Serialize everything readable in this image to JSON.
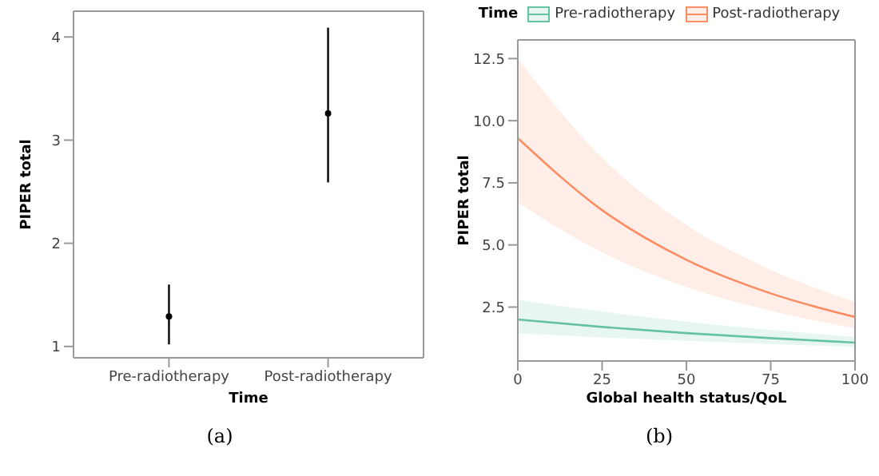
{
  "chart_data": [
    {
      "type": "scatter",
      "xlabel": "Time",
      "ylabel": "PIPER total",
      "categories": [
        "Pre-radiotherapy",
        "Post-radiotherapy"
      ],
      "ylim": [
        0.89,
        4.25
      ],
      "yticks": [
        1,
        2,
        3,
        4
      ],
      "grid": false,
      "marker": "circle",
      "annotations": [
        "(a)"
      ],
      "series": [
        {
          "color": "#000000",
          "values": [
            1.29,
            3.26
          ],
          "errors": [
            [
              1.02,
              1.6
            ],
            [
              2.59,
              4.09
            ]
          ]
        }
      ]
    },
    {
      "type": "line",
      "xlabel": "Global health status/QoL",
      "ylabel": "PIPER total",
      "legend_title": "Time",
      "legend": "top",
      "x": [
        0,
        25,
        50,
        75,
        100
      ],
      "xlim": [
        0,
        100
      ],
      "xticks": [
        0,
        25,
        50,
        75,
        100
      ],
      "ylim": [
        0.33,
        13.25
      ],
      "yticks": [
        2.5,
        {
          "value": 5,
          "label": "5.0"
        },
        7.5,
        {
          "value": 10,
          "label": "10.0"
        },
        12.5
      ],
      "grid": false,
      "marker": "none",
      "annotations": [
        "(b)"
      ],
      "series": [
        {
          "name": "Pre-radiotherapy",
          "color": "#66c2a5",
          "values": [
            2.0,
            1.7,
            1.45,
            1.25,
            1.07
          ],
          "lower": [
            1.45,
            1.28,
            1.14,
            1.01,
            0.9
          ],
          "upper": [
            2.8,
            2.32,
            1.91,
            1.58,
            1.3
          ]
        },
        {
          "name": "Post-radiotherapy",
          "color": "#fc8d62",
          "values": [
            9.3,
            6.4,
            4.4,
            3.05,
            2.1
          ],
          "lower": [
            6.7,
            4.7,
            3.3,
            2.35,
            1.65
          ],
          "upper": [
            12.5,
            8.5,
            5.8,
            4.0,
            2.7
          ]
        }
      ]
    }
  ]
}
